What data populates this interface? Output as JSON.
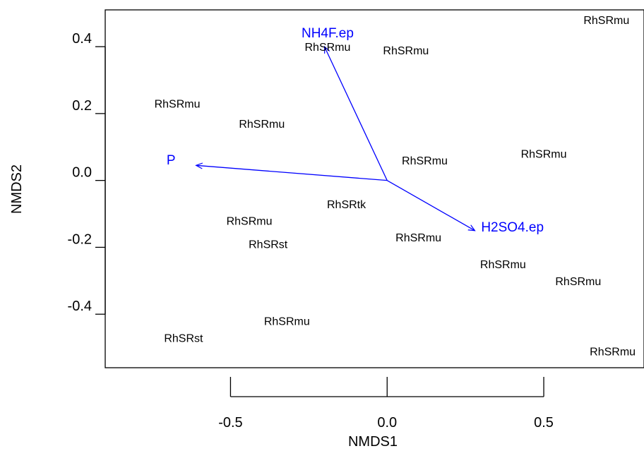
{
  "chart_data": {
    "type": "scatter",
    "xlabel": "NMDS1",
    "ylabel": "NMDS2",
    "xlim": [
      -0.9,
      0.82
    ],
    "ylim": [
      -0.56,
      0.51
    ],
    "xticks": [
      -0.5,
      0.0,
      0.5
    ],
    "xtick_labels": [
      "-0.5",
      "0.0",
      "0.5"
    ],
    "yticks": [
      0.4,
      0.2,
      0.0,
      -0.2,
      -0.4
    ],
    "ytick_labels": [
      "0.4",
      "0.2",
      "0.0",
      "-0.2",
      "-0.4"
    ],
    "grid": false,
    "points": [
      {
        "label": "RhSRmu",
        "x": 0.7,
        "y": 0.48
      },
      {
        "label": "RhSRmu",
        "x": -0.19,
        "y": 0.4
      },
      {
        "label": "RhSRmu",
        "x": 0.06,
        "y": 0.39
      },
      {
        "label": "RhSRmu",
        "x": -0.67,
        "y": 0.23
      },
      {
        "label": "RhSRmu",
        "x": -0.4,
        "y": 0.17
      },
      {
        "label": "RhSRmu",
        "x": 0.12,
        "y": 0.06
      },
      {
        "label": "RhSRmu",
        "x": 0.5,
        "y": 0.08
      },
      {
        "label": "RhSRtk",
        "x": -0.13,
        "y": -0.07
      },
      {
        "label": "RhSRmu",
        "x": -0.44,
        "y": -0.12
      },
      {
        "label": "RhSRst",
        "x": -0.38,
        "y": -0.19
      },
      {
        "label": "RhSRmu",
        "x": 0.1,
        "y": -0.17
      },
      {
        "label": "RhSRmu",
        "x": 0.37,
        "y": -0.25
      },
      {
        "label": "RhSRmu",
        "x": 0.61,
        "y": -0.3
      },
      {
        "label": "RhSRmu",
        "x": -0.32,
        "y": -0.42
      },
      {
        "label": "RhSRst",
        "x": -0.65,
        "y": -0.47
      },
      {
        "label": "RhSRmu",
        "x": 0.72,
        "y": -0.51
      }
    ],
    "vectors": [
      {
        "label": "NH4F.ep",
        "x": -0.2,
        "y": 0.4,
        "label_x": -0.19,
        "label_y": 0.44
      },
      {
        "label": "P",
        "x": -0.61,
        "y": 0.045,
        "label_x": -0.69,
        "label_y": 0.06
      },
      {
        "label": "H2SO4.ep",
        "x": 0.28,
        "y": -0.15,
        "label_x": 0.4,
        "label_y": -0.14
      }
    ],
    "vector_color": "#0000ff",
    "point_color": "#000000"
  }
}
